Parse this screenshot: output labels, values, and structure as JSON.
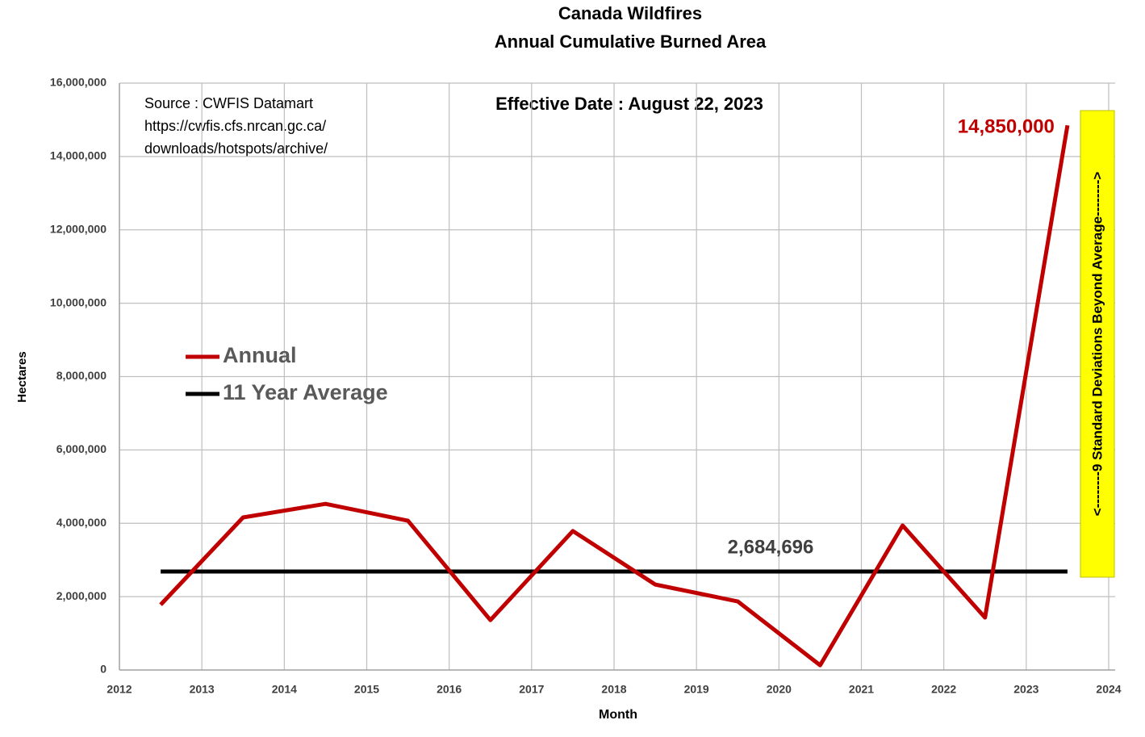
{
  "chart_data": {
    "type": "line",
    "title": "Canada Wildfires",
    "subtitle": "Annual Cumulative Burned Area",
    "x_label": "Month",
    "y_label": "Hectares",
    "x": [
      2012.5,
      2013.5,
      2014.5,
      2015.5,
      2016.5,
      2017.5,
      2018.5,
      2019.5,
      2020.5,
      2021.5,
      2022.5,
      2023.5
    ],
    "series": [
      {
        "name": "Annual",
        "color": "#c00000",
        "values": [
          1780000,
          4160000,
          4530000,
          4070000,
          1360000,
          3790000,
          2330000,
          1870000,
          130000,
          3940000,
          1430000,
          14850000
        ],
        "value_labels": [
          null,
          null,
          null,
          null,
          null,
          null,
          null,
          null,
          null,
          null,
          null,
          "14,850,000"
        ]
      }
    ],
    "reference_line": {
      "name": "11 Year Average",
      "color": "#000000",
      "value": 2684696,
      "label": "2,684,696"
    },
    "xlim": [
      2012,
      2024
    ],
    "xticks": [
      2012,
      2013,
      2014,
      2015,
      2016,
      2017,
      2018,
      2019,
      2020,
      2021,
      2022,
      2023,
      2024
    ],
    "ylim": [
      0,
      16000000
    ],
    "yticks": [
      0,
      {
        "value": 2000000,
        "label": "2,000,000"
      },
      {
        "value": 4000000,
        "label": "4,000,000"
      },
      {
        "value": 6000000,
        "label": "6,000,000"
      },
      {
        "value": 8000000,
        "label": "8,000,000"
      },
      {
        "value": 10000000,
        "label": "10,000,000"
      },
      {
        "value": 12000000,
        "label": "12,000,000"
      },
      {
        "value": 14000000,
        "label": "14,000,000"
      },
      {
        "value": 16000000,
        "label": "16,000,000"
      }
    ],
    "grid": true,
    "legend": "left",
    "source_lines": [
      "Source : CWFIS Datamart",
      "https://cwfis.cfs.nrcan.gc.ca/",
      "downloads/hotspots/archive/"
    ],
    "effective_date": "Effective Date : August 22, 2023",
    "side_note": "<--------9  Standard Deviations Beyond Average-------->"
  }
}
